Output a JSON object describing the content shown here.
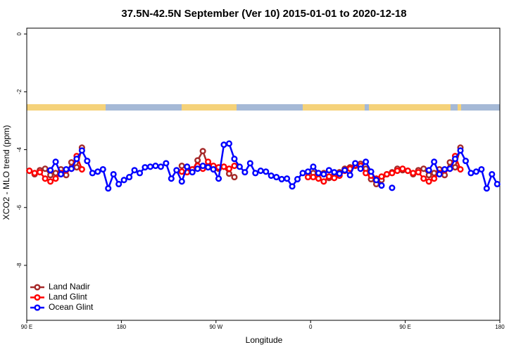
{
  "chart_data": {
    "type": "line",
    "title": "37.5N-42.5N September (Ver 10)   2015-01-01 to 2020-12-18",
    "x_label": "Longitude",
    "y_label": "XCO2 - MLO trend (ppm)",
    "xlim": [
      90,
      540
    ],
    "ylim": [
      -9.9,
      0.2
    ],
    "xticks": [
      {
        "value": 90,
        "label": "90 E"
      },
      180,
      {
        "value": 270,
        "label": "90 W"
      },
      {
        "value": 360,
        "label": "0"
      },
      {
        "value": 450,
        "label": "90 E"
      },
      {
        "value": 540,
        "label": "180"
      }
    ],
    "yticks": [
      0,
      -2,
      -4,
      -6,
      -8
    ],
    "legend": "bottom-left",
    "x": [
      92.5,
      97.5,
      102.5,
      107.5,
      112.5,
      117.5,
      122.5,
      127.5,
      132.5,
      137.5,
      142.5,
      147.5,
      152.5,
      157.5,
      162.5,
      167.5,
      172.5,
      177.5,
      182.5,
      187.5,
      192.5,
      197.5,
      202.5,
      207.5,
      212.5,
      217.5,
      222.5,
      227.5,
      232.5,
      237.5,
      242.5,
      247.5,
      252.5,
      257.5,
      262.5,
      267.5,
      272.5,
      277.5,
      282.5,
      287.5,
      292.5,
      297.5,
      302.5,
      307.5,
      312.5,
      317.5,
      322.5,
      327.5,
      332.5,
      337.5,
      342.5,
      347.5,
      352.5,
      357.5,
      362.5,
      367.5,
      372.5,
      377.5,
      382.5,
      387.5,
      392.5,
      397.5,
      402.5,
      407.5,
      412.5,
      417.5,
      422.5,
      427.5,
      432.5,
      437.5,
      442.5,
      447.5,
      452.5,
      457.5,
      462.5,
      467.5,
      472.5,
      477.5,
      482.5,
      487.5,
      492.5,
      497.5,
      502.5,
      507.5,
      512.5,
      517.5,
      522.5,
      527.5,
      532.5,
      537.5
    ],
    "series": [
      {
        "name": "Land Nadir",
        "color": "#a52a2a",
        "values": [
          -4.73,
          -4.85,
          -4.71,
          -4.66,
          -4.88,
          -4.81,
          -4.68,
          -4.88,
          -4.44,
          -4.61,
          -3.93,
          null,
          null,
          null,
          null,
          null,
          null,
          null,
          null,
          null,
          null,
          null,
          null,
          null,
          null,
          null,
          null,
          null,
          null,
          -4.56,
          -4.59,
          -4.73,
          -4.37,
          -4.05,
          -4.56,
          -4.66,
          -4.66,
          -4.59,
          -4.83,
          -4.95,
          null,
          null,
          null,
          null,
          null,
          null,
          null,
          null,
          null,
          null,
          null,
          null,
          null,
          -4.78,
          -4.81,
          -4.83,
          -4.81,
          -4.98,
          -4.85,
          -4.78,
          -4.66,
          -4.61,
          -4.56,
          -4.49,
          -4.66,
          -5.02,
          -5.19,
          -5.05,
          -4.85,
          -4.78,
          -4.66,
          -4.71,
          -4.73,
          -4.85,
          -4.71,
          -4.66,
          -4.88,
          -4.81,
          -4.68,
          -4.88,
          -4.44,
          -4.61,
          -3.93,
          null,
          null,
          null,
          null,
          null,
          null,
          null
        ]
      },
      {
        "name": "Land Glint",
        "color": "#ff0000",
        "values": [
          -4.73,
          -4.81,
          -4.78,
          -5.0,
          -5.1,
          -5.0,
          -4.81,
          -4.71,
          -4.66,
          -4.22,
          -4.68,
          null,
          null,
          null,
          null,
          null,
          null,
          null,
          null,
          null,
          null,
          null,
          null,
          null,
          null,
          null,
          null,
          null,
          null,
          -4.76,
          -4.78,
          -4.68,
          -4.56,
          -4.66,
          -4.42,
          -4.56,
          -4.61,
          -4.59,
          -4.66,
          -4.56,
          null,
          null,
          null,
          null,
          null,
          null,
          null,
          null,
          null,
          null,
          null,
          null,
          null,
          -4.95,
          -4.95,
          -5.0,
          -5.1,
          -4.93,
          -4.98,
          -4.9,
          -4.73,
          -4.66,
          -4.54,
          -4.56,
          -4.81,
          -4.9,
          -5.0,
          -4.93,
          -4.85,
          -4.81,
          -4.73,
          -4.66,
          -4.73,
          -4.81,
          -4.78,
          -5.0,
          -5.1,
          -5.0,
          -4.81,
          -4.71,
          -4.66,
          -4.22,
          -4.68,
          null,
          null,
          null,
          null,
          null,
          null,
          null
        ]
      },
      {
        "name": "Ocean Glint",
        "color": "#0000ff",
        "values": [
          null,
          null,
          null,
          null,
          -4.71,
          -4.42,
          -4.85,
          -4.68,
          -4.66,
          -4.32,
          -4.03,
          -4.39,
          -4.81,
          -4.76,
          -4.68,
          -5.34,
          -4.85,
          -5.19,
          -5.05,
          -4.95,
          -4.71,
          -4.81,
          -4.61,
          -4.59,
          -4.56,
          -4.59,
          -4.47,
          -5.0,
          -4.71,
          -5.1,
          -4.59,
          -4.78,
          -4.66,
          -4.56,
          -4.61,
          -4.68,
          -5.0,
          -3.83,
          -3.79,
          -4.32,
          -4.59,
          -4.78,
          -4.47,
          -4.81,
          -4.73,
          -4.76,
          -4.9,
          -4.95,
          -5.02,
          -5.0,
          -5.27,
          -5.02,
          -4.81,
          -4.76,
          -4.59,
          -4.81,
          -4.85,
          -4.71,
          -4.78,
          -4.83,
          -4.71,
          -4.88,
          -4.47,
          -4.66,
          -4.42,
          -4.76,
          -5.05,
          -5.24,
          null,
          -5.32,
          null,
          null,
          null,
          null,
          null,
          null,
          -4.71,
          -4.42,
          -4.85,
          -4.68,
          -4.66,
          -4.32,
          -4.03,
          -4.39,
          -4.81,
          -4.76,
          -4.68,
          -5.34,
          -4.85,
          -5.19
        ]
      }
    ]
  }
}
